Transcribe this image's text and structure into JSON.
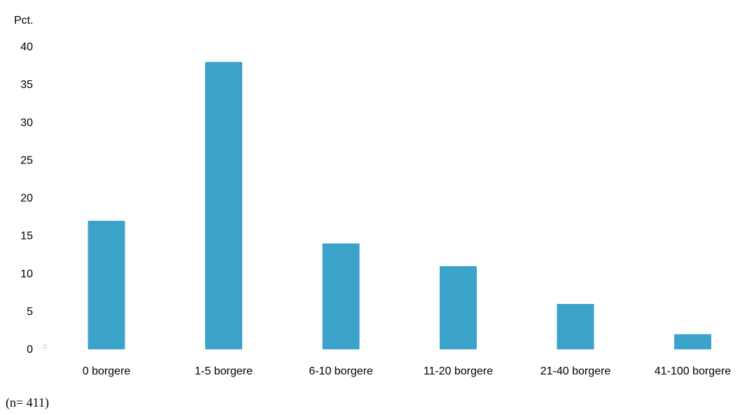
{
  "chart_data": {
    "type": "bar",
    "title": "",
    "ylabel": "Pct.",
    "xlabel": "",
    "categories": [
      "0 borgere",
      "1-5 borgere",
      "6-10 borgere",
      "11-20 borgere",
      "21-40 borgere",
      "41-100 borgere"
    ],
    "values": [
      17,
      38,
      14,
      11,
      6,
      2
    ],
    "ylim": [
      0,
      40
    ],
    "yticks": [
      "0",
      "5",
      "10",
      "15",
      "20",
      "25",
      "30",
      "35",
      "40"
    ],
    "grid": false,
    "legend": "none",
    "bar_color": "#3ba3c9",
    "note": "(n= 411)"
  }
}
